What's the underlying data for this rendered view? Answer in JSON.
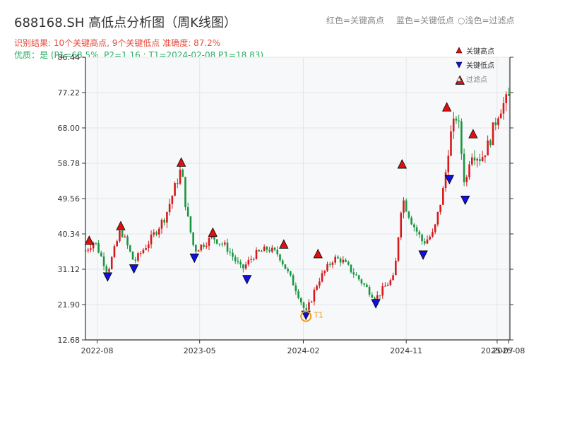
{
  "header": {
    "title": "688168.SH 高低点分析图（周K线图）",
    "legend_red": "红色=关键高点",
    "legend_blue": "蓝色=关键低点",
    "legend_light": "浅色=过滤点",
    "result_line": "识别结果: 10个关键高点, 9个关键低点   准确度: 87.2%",
    "quality_line": "优质：是  (P1=68.5%, P2=1.16 ; T1=2024-02-08 P1=18.83)"
  },
  "colors": {
    "up": "#d7191c",
    "down": "#1a9641",
    "high_marker": "#e01010",
    "low_marker": "#1010e0",
    "t1_marker": "#f39c12",
    "plot_bg": "#f7f8fa"
  },
  "chart_data": {
    "type": "candlestick",
    "ylim": [
      12.68,
      86.44
    ],
    "yticks": [
      "12.68",
      "21.90",
      "31.12",
      "40.34",
      "49.56",
      "58.78",
      "68.00",
      "77.22",
      "86.44"
    ],
    "x_range": [
      "2022-07-01",
      "2025-08-04"
    ],
    "xticks": [
      {
        "date": "2022-08-01",
        "label": "2022-08"
      },
      {
        "date": "2023-05-01",
        "label": "2023-05"
      },
      {
        "date": "2024-02-01",
        "label": "2024-02"
      },
      {
        "date": "2024-11-01",
        "label": "2024-11"
      },
      {
        "date": "2025-07-01",
        "label": "2025-07"
      },
      {
        "date": "2025-08-01",
        "label": "2025-08"
      }
    ],
    "price_path": [
      [
        "2022-07-01",
        36.0
      ],
      [
        "2022-07-25",
        38.5
      ],
      [
        "2022-08-29",
        30.5
      ],
      [
        "2022-10-03",
        41.5
      ],
      [
        "2022-11-07",
        33.0
      ],
      [
        "2022-12-19",
        38.5
      ],
      [
        "2023-01-30",
        45.0
      ],
      [
        "2023-03-13",
        57.5
      ],
      [
        "2023-03-27",
        46.0
      ],
      [
        "2023-04-17",
        36.0
      ],
      [
        "2023-06-05",
        39.5
      ],
      [
        "2023-07-10",
        37.0
      ],
      [
        "2023-08-21",
        31.0
      ],
      [
        "2023-09-25",
        35.0
      ],
      [
        "2023-10-30",
        36.5
      ],
      [
        "2023-11-27",
        35.0
      ],
      [
        "2024-01-15",
        25.5
      ],
      [
        "2024-02-08",
        19.5
      ],
      [
        "2024-03-11",
        28.0
      ],
      [
        "2024-04-22",
        34.0
      ],
      [
        "2024-05-13",
        33.5
      ],
      [
        "2024-06-24",
        29.0
      ],
      [
        "2024-08-12",
        23.5
      ],
      [
        "2024-09-09",
        27.0
      ],
      [
        "2024-09-30",
        29.0
      ],
      [
        "2024-10-21",
        50.0
      ],
      [
        "2024-11-18",
        43.0
      ],
      [
        "2024-12-16",
        38.0
      ],
      [
        "2025-01-13",
        40.5
      ],
      [
        "2025-02-10",
        53.0
      ],
      [
        "2025-02-24",
        65.0
      ],
      [
        "2025-03-17",
        72.0
      ],
      [
        "2025-04-07",
        52.0
      ],
      [
        "2025-04-21",
        62.0
      ],
      [
        "2025-05-19",
        60.0
      ],
      [
        "2025-06-09",
        64.0
      ],
      [
        "2025-07-07",
        73.0
      ],
      [
        "2025-08-04",
        76.0
      ]
    ],
    "key_highs": [
      {
        "date": "2022-07-11",
        "price": 38.5
      },
      {
        "date": "2022-10-03",
        "price": 42.3
      },
      {
        "date": "2023-03-13",
        "price": 58.9
      },
      {
        "date": "2023-06-05",
        "price": 40.6
      },
      {
        "date": "2023-12-11",
        "price": 37.5
      },
      {
        "date": "2024-03-11",
        "price": 35.0
      },
      {
        "date": "2024-10-21",
        "price": 58.4
      },
      {
        "date": "2025-02-17",
        "price": 73.3
      },
      {
        "date": "2025-03-24",
        "price": 80.3
      },
      {
        "date": "2025-04-28",
        "price": 66.3
      }
    ],
    "key_lows": [
      {
        "date": "2022-08-29",
        "price": 29.3
      },
      {
        "date": "2022-11-07",
        "price": 31.4
      },
      {
        "date": "2023-04-17",
        "price": 34.2
      },
      {
        "date": "2023-09-04",
        "price": 28.6
      },
      {
        "date": "2024-02-08",
        "price": 19.3
      },
      {
        "date": "2024-08-12",
        "price": 22.3
      },
      {
        "date": "2024-12-16",
        "price": 35.0
      },
      {
        "date": "2025-02-24",
        "price": 54.7
      },
      {
        "date": "2025-04-07",
        "price": 49.3
      }
    ],
    "t1": {
      "label": "T1",
      "date": "2024-02-08",
      "price": 18.83
    },
    "legend": {
      "position": "top-right",
      "entries": [
        "关键高点",
        "关键低点",
        "过滤点"
      ]
    },
    "grid": true
  }
}
